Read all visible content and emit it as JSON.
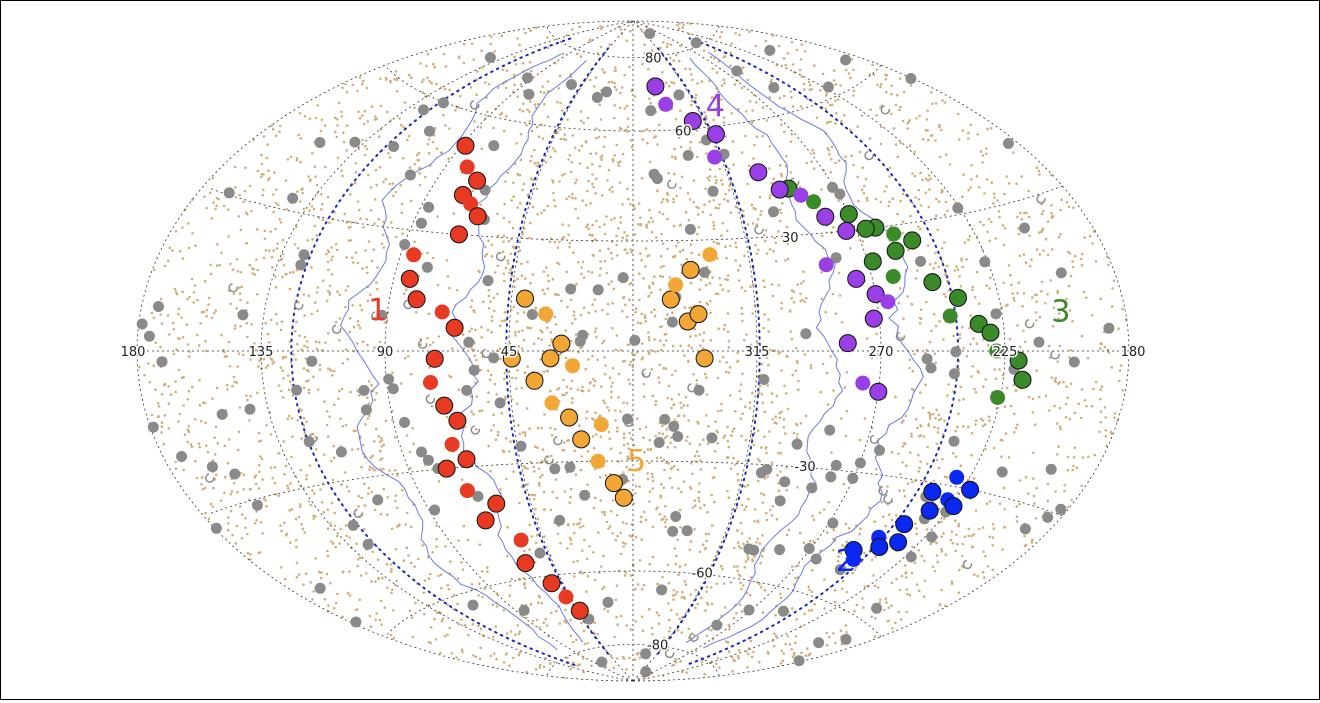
{
  "chart_data": {
    "type": "scatter",
    "projection": "aitoff",
    "title": "",
    "lon_ticks": [
      "180",
      "135",
      "90",
      "45",
      "315",
      "270",
      "225",
      "180"
    ],
    "lat_ticks": [
      "80",
      "60",
      "30",
      "-30",
      "-60",
      "-80"
    ],
    "colors": {
      "background_points": "#d4ae7a",
      "gray_points": "#8a8a8a",
      "group_1": "#e83a22",
      "group_2": "#0a28f0",
      "group_3": "#3a8a2a",
      "group_4": "#9a3ee6",
      "group_5": "#f2a635",
      "boundary_line": "#6a7ce6",
      "dotted_line": "#1a2ab8",
      "grid": "#333333"
    },
    "group_labels": [
      {
        "id": "1",
        "text": "1",
        "color": "#e83a22"
      },
      {
        "id": "2",
        "text": "2",
        "color": "#0a28f0"
      },
      {
        "id": "3",
        "text": "3",
        "color": "#3a8a2a"
      },
      {
        "id": "4",
        "text": "4",
        "color": "#9a3ee6"
      },
      {
        "id": "5",
        "text": "5",
        "color": "#f2a635"
      }
    ],
    "series": [
      {
        "id": "1",
        "lon_lat": [
          [
            88,
            52
          ],
          [
            80,
            47
          ],
          [
            72,
            44
          ],
          [
            75,
            40
          ],
          [
            70,
            38
          ],
          [
            65,
            35
          ],
          [
            70,
            30
          ],
          [
            85,
            24
          ],
          [
            84,
            18
          ],
          [
            80,
            13
          ],
          [
            70,
            10
          ],
          [
            65,
            6
          ],
          [
            72,
            -2
          ],
          [
            74,
            -8
          ],
          [
            70,
            -14
          ],
          [
            66,
            -18
          ],
          [
            70,
            -24
          ],
          [
            66,
            -28
          ],
          [
            75,
            -30
          ],
          [
            70,
            -36
          ],
          [
            60,
            -40
          ],
          [
            68,
            -44
          ],
          [
            56,
            -50
          ],
          [
            60,
            -56
          ],
          [
            52,
            -62
          ],
          [
            48,
            -66
          ],
          [
            44,
            -70
          ]
        ]
      },
      {
        "id": "2",
        "lon_lat": [
          [
            250,
            -48
          ],
          [
            244,
            -44
          ],
          [
            238,
            -40
          ],
          [
            232,
            -36
          ],
          [
            228,
            -33
          ],
          [
            222,
            -30
          ],
          [
            236,
            -32
          ],
          [
            230,
            -28
          ],
          [
            224,
            -34
          ],
          [
            240,
            -46
          ],
          [
            246,
            -50
          ],
          [
            234,
            -44
          ]
        ]
      },
      {
        "id": "3",
        "lon_lat": [
          [
            290,
            42
          ],
          [
            282,
            38
          ],
          [
            270,
            34
          ],
          [
            262,
            30
          ],
          [
            256,
            28
          ],
          [
            250,
            26
          ],
          [
            268,
            22
          ],
          [
            262,
            18
          ],
          [
            248,
            16
          ],
          [
            240,
            12
          ],
          [
            244,
            8
          ],
          [
            234,
            6
          ],
          [
            230,
            4
          ],
          [
            228,
            0
          ],
          [
            220,
            -2
          ],
          [
            218,
            -6
          ],
          [
            226,
            -10
          ],
          [
            266,
            30
          ],
          [
            258,
            24
          ]
        ]
      },
      {
        "id": "4",
        "lon_lat": [
          [
            340,
            72
          ],
          [
            336,
            67
          ],
          [
            322,
            62
          ],
          [
            312,
            58
          ],
          [
            318,
            52
          ],
          [
            300,
            47
          ],
          [
            294,
            42
          ],
          [
            286,
            40
          ],
          [
            280,
            34
          ],
          [
            274,
            30
          ],
          [
            286,
            22
          ],
          [
            276,
            18
          ],
          [
            270,
            14
          ],
          [
            266,
            12
          ],
          [
            272,
            8
          ],
          [
            282,
            2
          ],
          [
            276,
            -8
          ],
          [
            270,
            -10
          ]
        ]
      },
      {
        "id": "5",
        "lon_lat": [
          [
            40,
            14
          ],
          [
            32,
            10
          ],
          [
            26,
            2
          ],
          [
            30,
            -2
          ],
          [
            22,
            -4
          ],
          [
            44,
            -2
          ],
          [
            36,
            -8
          ],
          [
            30,
            -14
          ],
          [
            24,
            -18
          ],
          [
            20,
            -24
          ],
          [
            14,
            -30
          ],
          [
            8,
            -36
          ],
          [
            4,
            -40
          ],
          [
            12,
            -20
          ],
          [
            340,
            8
          ],
          [
            346,
            14
          ],
          [
            344,
            18
          ],
          [
            336,
            10
          ],
          [
            338,
            22
          ],
          [
            330,
            26
          ],
          [
            334,
            -2
          ]
        ]
      }
    ],
    "xlabel": "",
    "ylabel": "",
    "grid": true
  }
}
